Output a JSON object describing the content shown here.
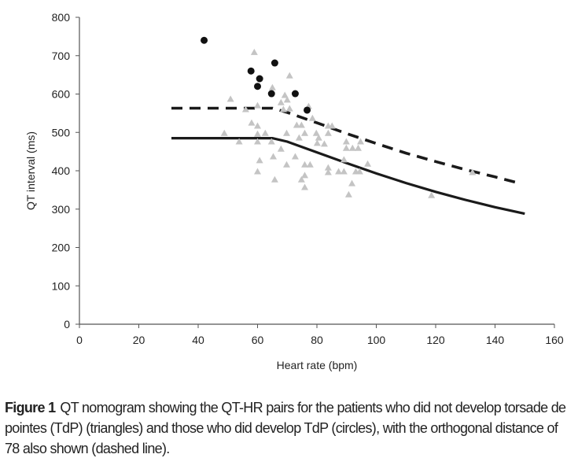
{
  "chart_data": {
    "type": "scatter",
    "xlabel": "Heart rate (bpm)",
    "ylabel": "QT interval (ms)",
    "xlim": [
      0,
      160
    ],
    "ylim": [
      0,
      800
    ],
    "xticks": [
      0,
      20,
      40,
      60,
      80,
      100,
      120,
      140,
      160
    ],
    "yticks": [
      0,
      100,
      200,
      300,
      400,
      500,
      600,
      700,
      800
    ],
    "grid": false,
    "colors": {
      "triangles": "#c4c4c4",
      "circles": "#111111",
      "lines": "#1a1a1a"
    },
    "series": [
      {
        "marker": "triangle",
        "points": [
          [
            58.9,
            709
          ],
          [
            50.9,
            587
          ],
          [
            70.8,
            648
          ],
          [
            65,
            617
          ],
          [
            69.2,
            597
          ],
          [
            67.9,
            578
          ],
          [
            70,
            585
          ],
          [
            68.7,
            560
          ],
          [
            70.8,
            562
          ],
          [
            77.2,
            568
          ],
          [
            56,
            560
          ],
          [
            60,
            570
          ],
          [
            58,
            525
          ],
          [
            60,
            517
          ],
          [
            48.8,
            498
          ],
          [
            53.8,
            476
          ],
          [
            60,
            496
          ],
          [
            60,
            476
          ],
          [
            62.6,
            498
          ],
          [
            69.8,
            498
          ],
          [
            73.2,
            519
          ],
          [
            74.8,
            519
          ],
          [
            75.9,
            498
          ],
          [
            78.5,
            537
          ],
          [
            79.8,
            498
          ],
          [
            80.6,
            486
          ],
          [
            80.1,
            472
          ],
          [
            82.5,
            470
          ],
          [
            74,
            486
          ],
          [
            83.8,
            517
          ],
          [
            85.1,
            517
          ],
          [
            83.8,
            498
          ],
          [
            89.9,
            476
          ],
          [
            89.9,
            459
          ],
          [
            92,
            459
          ],
          [
            93.9,
            459
          ],
          [
            94.7,
            476
          ],
          [
            64.7,
            476
          ],
          [
            67.9,
            457
          ],
          [
            65.3,
            437
          ],
          [
            60.7,
            427
          ],
          [
            60,
            398
          ],
          [
            69.8,
            416
          ],
          [
            72.7,
            437
          ],
          [
            75.9,
            416
          ],
          [
            77.7,
            416
          ],
          [
            65.8,
            377
          ],
          [
            75.9,
            388
          ],
          [
            74.8,
            377
          ],
          [
            75.9,
            357
          ],
          [
            83.8,
            408
          ],
          [
            83.8,
            396
          ],
          [
            87.3,
            398
          ],
          [
            89.1,
            398
          ],
          [
            93.1,
            398
          ],
          [
            94.4,
            398
          ],
          [
            97.1,
            418
          ],
          [
            91.8,
            367
          ],
          [
            90.7,
            338
          ],
          [
            89.1,
            429
          ],
          [
            118.6,
            336
          ],
          [
            132.4,
            396
          ]
        ]
      },
      {
        "marker": "circle",
        "points": [
          [
            42,
            740
          ],
          [
            57.8,
            660
          ],
          [
            65.8,
            681
          ],
          [
            60.7,
            640
          ],
          [
            60,
            620
          ],
          [
            64.7,
            601
          ],
          [
            72.7,
            601
          ],
          [
            76.7,
            558
          ]
        ]
      },
      {
        "style": "solid",
        "points": [
          [
            31,
            485
          ],
          [
            65,
            485
          ],
          [
            70,
            476
          ],
          [
            80,
            448
          ],
          [
            90,
            420
          ],
          [
            100,
            393
          ],
          [
            110,
            368
          ],
          [
            120,
            345
          ],
          [
            130,
            324
          ],
          [
            140,
            305
          ],
          [
            150,
            288
          ]
        ]
      },
      {
        "style": "dashed",
        "points": [
          [
            31,
            563
          ],
          [
            65,
            563
          ],
          [
            70,
            552
          ],
          [
            80,
            525
          ],
          [
            90,
            497
          ],
          [
            100,
            471
          ],
          [
            110,
            446
          ],
          [
            120,
            424
          ],
          [
            130,
            403
          ],
          [
            140,
            384
          ],
          [
            148,
            368
          ]
        ]
      }
    ]
  },
  "caption": {
    "label": "Figure 1",
    "text": "QT nomogram showing the QT-HR pairs for the patients who did not develop torsade de pointes (TdP) (triangles) and those who did develop TdP (circles), with the orthogonal distance of 78 also shown (dashed line)."
  }
}
